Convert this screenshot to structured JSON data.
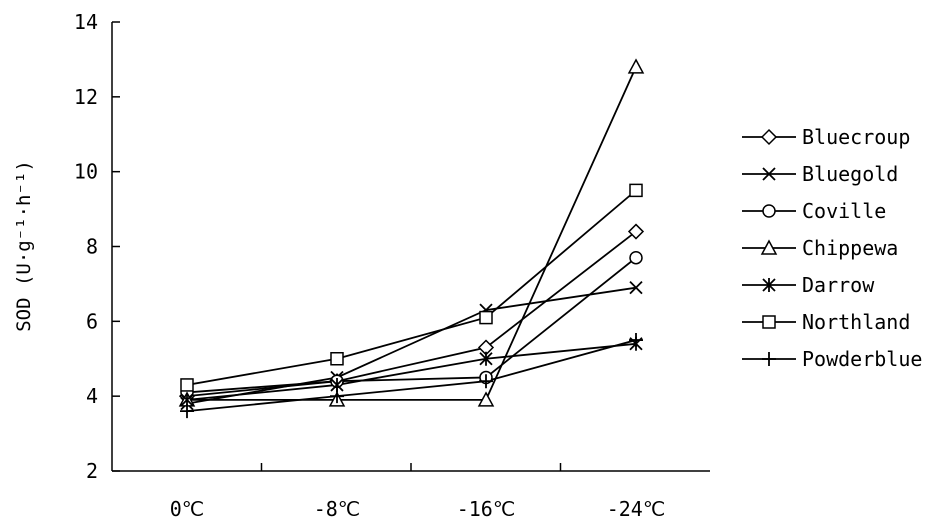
{
  "chart_data": {
    "type": "line",
    "title": "",
    "xlabel": "",
    "ylabel": "SOD (U·g⁻¹·h⁻¹)",
    "categories": [
      "0℃",
      "-8℃",
      "-16℃",
      "-24℃"
    ],
    "ylim": [
      2,
      14
    ],
    "yticks": [
      "2",
      "4",
      "6",
      "8",
      "10",
      "12",
      "14"
    ],
    "grid": false,
    "legend_position": "right",
    "series": [
      {
        "name": "Bluecroup",
        "marker": "diamond",
        "values": [
          4.0,
          4.4,
          5.3,
          8.4
        ]
      },
      {
        "name": "Bluegold",
        "marker": "x",
        "values": [
          3.8,
          4.5,
          6.3,
          6.9
        ]
      },
      {
        "name": "Coville",
        "marker": "circle",
        "values": [
          4.1,
          4.4,
          4.5,
          7.7
        ]
      },
      {
        "name": "Chippewa",
        "marker": "triangle",
        "values": [
          3.9,
          3.9,
          3.9,
          12.8
        ]
      },
      {
        "name": "Darrow",
        "marker": "asterisk",
        "values": [
          3.9,
          4.3,
          5.0,
          5.4
        ]
      },
      {
        "name": "Northland",
        "marker": "square",
        "values": [
          4.3,
          5.0,
          6.1,
          9.5
        ]
      },
      {
        "name": "Powderblue",
        "marker": "plus",
        "values": [
          3.6,
          4.0,
          4.4,
          5.5
        ]
      }
    ]
  }
}
